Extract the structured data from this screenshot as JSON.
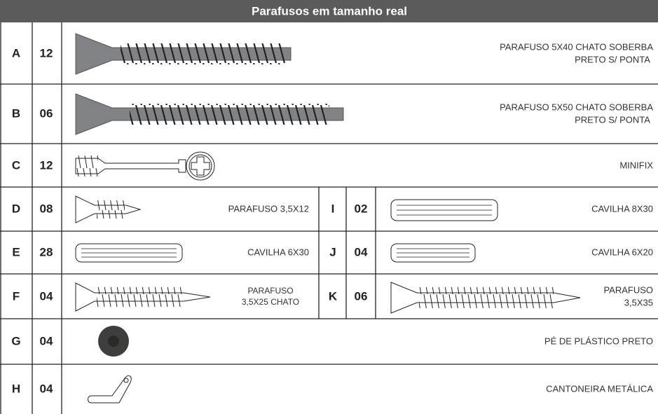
{
  "header": {
    "title": "Parafusos em tamanho real"
  },
  "items": [
    {
      "letter": "A",
      "quantity": "12",
      "description": [
        "PARAFUSO 5X40 CHATO SOBERBA",
        "PRETO S/ PONTA"
      ]
    },
    {
      "letter": "B",
      "quantity": "06",
      "description": [
        "PARAFUSO 5X50 CHATO SOBERBA",
        "PRETO S/ PONTA"
      ]
    },
    {
      "letter": "C",
      "quantity": "12",
      "description": [
        "MINIFIX"
      ]
    },
    {
      "letter": "D",
      "quantity": "08",
      "description": [
        "PARAFUSO 3,5X12"
      ]
    },
    {
      "letter": "E",
      "quantity": "28",
      "description": [
        "CAVILHA 6X30"
      ]
    },
    {
      "letter": "F",
      "quantity": "04",
      "description": [
        "PARAFUSO",
        "3,5X25 CHATO"
      ]
    },
    {
      "letter": "G",
      "quantity": "04",
      "description": [
        "PÉ DE PLÁSTICO PRETO"
      ]
    },
    {
      "letter": "H",
      "quantity": "04",
      "description": [
        "CANTONEIRA METÁLICA"
      ]
    },
    {
      "letter": "I",
      "quantity": "02",
      "description": [
        "CAVILHA 8X30"
      ]
    },
    {
      "letter": "J",
      "quantity": "04",
      "description": [
        "CAVILHA 6X20"
      ]
    },
    {
      "letter": "K",
      "quantity": "06",
      "description": [
        "PARAFUSO",
        "3,5X35"
      ]
    }
  ]
}
